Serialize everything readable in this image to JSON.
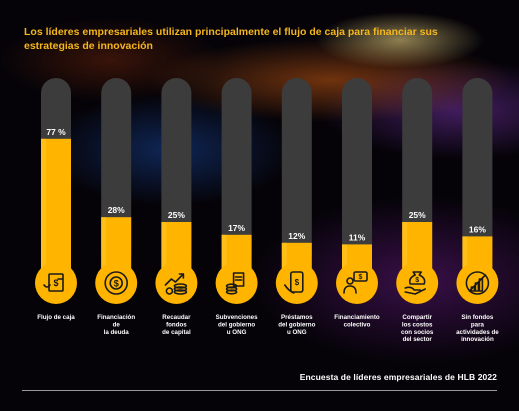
{
  "title": "Los líderes empresariales utilizan principalmente el flujo de caja para financiar sus estrategias de innovación",
  "footer": "Encuesta de líderes empresariales de HLB 2022",
  "colors": {
    "bar": "#ffb400",
    "bar_highlight": "#ffc72a",
    "track": "#3c3c3c",
    "title": "#f5b71c",
    "text": "#ffffff",
    "icon_fill": "#ffb400",
    "icon_stroke": "#1a1a1a"
  },
  "chart_data": {
    "type": "bar",
    "categories": [
      [
        "Flujo de caja"
      ],
      [
        "Financiación",
        "de",
        "la deuda"
      ],
      [
        "Recaudar",
        "fondos",
        "de capital"
      ],
      [
        "Subvenciones",
        "del gobierno",
        "u ONG"
      ],
      [
        "Préstamos",
        "del gobierno",
        "u ONG"
      ],
      [
        "Financiamiento",
        "colectivo"
      ],
      [
        "Compartir",
        "los costos",
        "con socios",
        "del sector"
      ],
      [
        "Sin fondos",
        "para",
        "actividades de",
        "innovación"
      ]
    ],
    "values": [
      77,
      28,
      25,
      17,
      12,
      11,
      25,
      16
    ],
    "value_labels": [
      "77 %",
      "28%",
      "25%",
      "17%",
      "12%",
      "11%",
      "25%",
      "16%"
    ],
    "icons": [
      "cash-flow-icon",
      "debt-financing-icon",
      "capital-growth-icon",
      "grant-coins-icon",
      "phone-loan-icon",
      "crowdfunding-icon",
      "shared-costs-icon",
      "no-funds-icon"
    ],
    "ylim": [
      0,
      100
    ]
  }
}
